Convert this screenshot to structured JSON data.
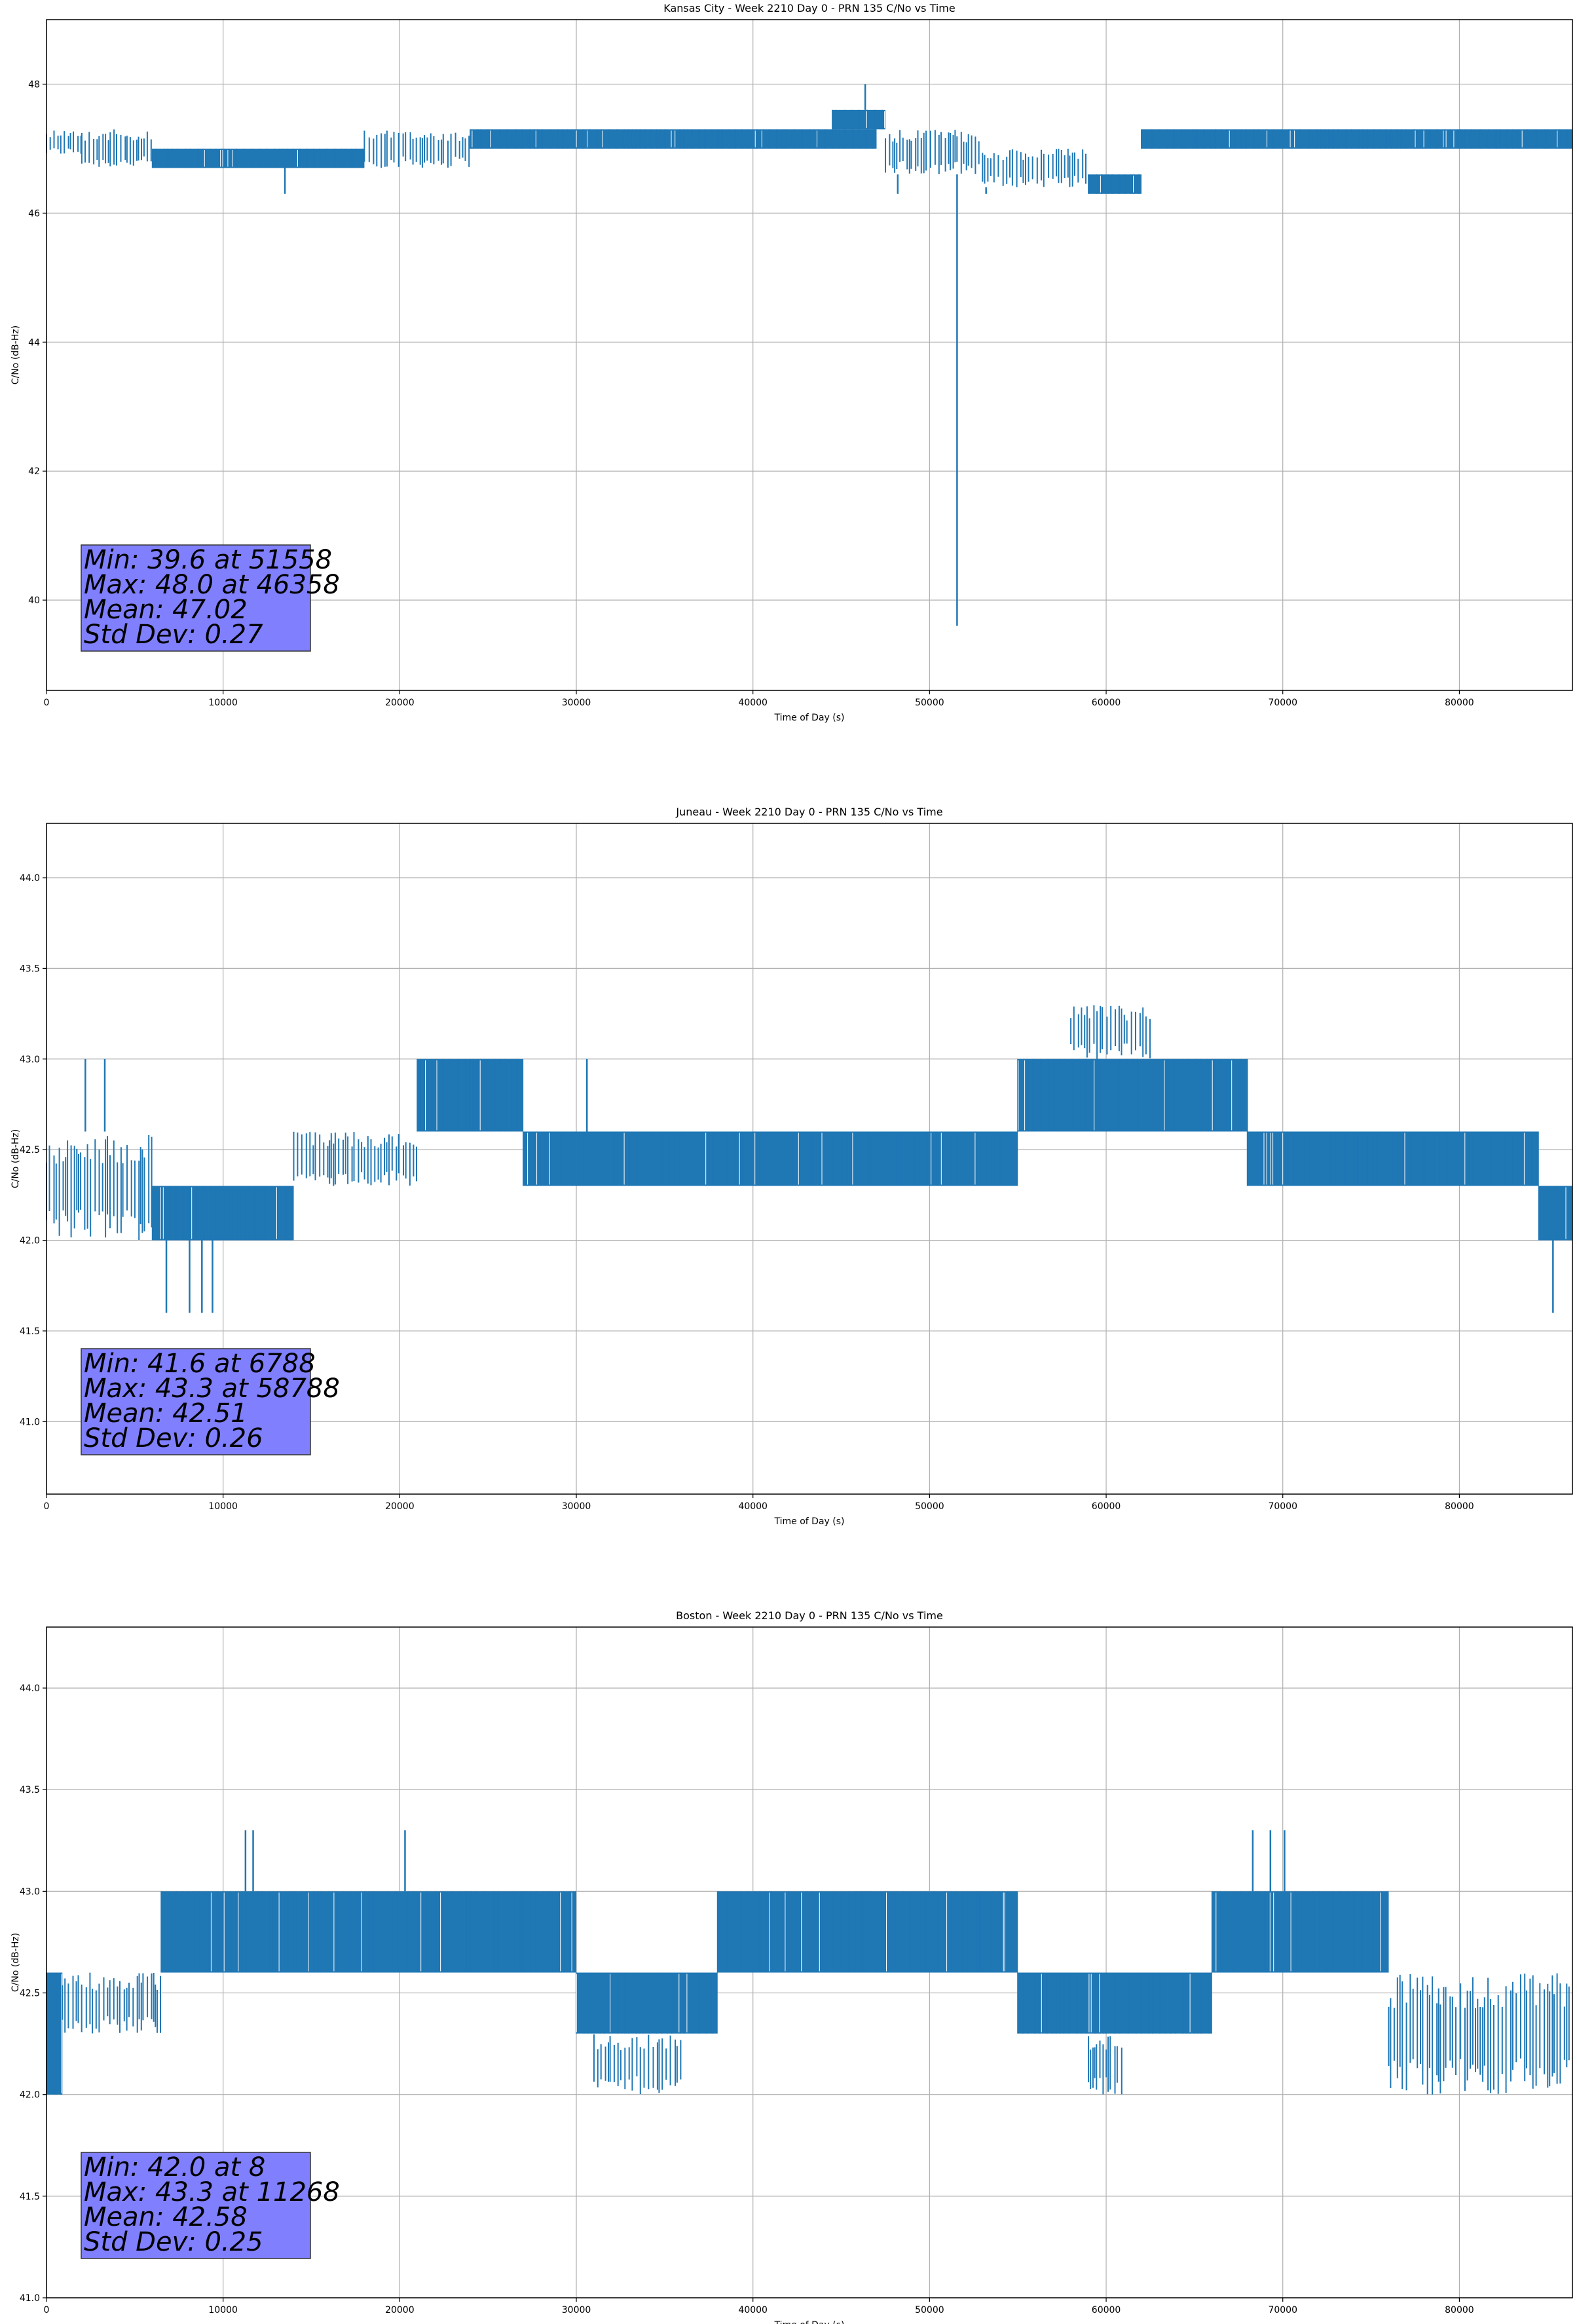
{
  "figure": {
    "background": "#ffffff",
    "series_color": "#1f77b4",
    "stats_box_color": "#8080ff"
  },
  "chart_data": [
    {
      "type": "line",
      "title": "Kansas City - Week 2210 Day 0 - PRN 135 C/No vs Time",
      "xlabel": "Time of Day (s)",
      "ylabel": "C/No (dB-Hz)",
      "xlim": [
        0,
        86400
      ],
      "ylim": [
        38.6,
        49.0
      ],
      "xticks": [
        0,
        10000,
        20000,
        30000,
        40000,
        50000,
        60000,
        70000,
        80000
      ],
      "yticks": [
        40,
        42,
        44,
        46,
        48
      ],
      "ytick_labels": [
        "40",
        "42",
        "44",
        "46",
        "48"
      ],
      "grid": true,
      "stats": [
        "Min: 39.6 at 51558",
        "Max: 48.0 at 46358",
        "Mean: 47.02",
        "Std Dev: 0.27"
      ],
      "series": [
        {
          "name": "C/No",
          "segments": [
            {
              "x": [
                0,
                2000
              ],
              "lo": 46.9,
              "hi": 47.3,
              "sparse": true
            },
            {
              "x": [
                2000,
                6000
              ],
              "lo": 46.7,
              "hi": 47.3,
              "sparse": true
            },
            {
              "x": [
                6000,
                18000
              ],
              "lo": 46.7,
              "hi": 47.0,
              "sparse": false
            },
            {
              "x": [
                18000,
                24000
              ],
              "lo": 46.7,
              "hi": 47.3,
              "sparse": true
            },
            {
              "x": [
                24000,
                47000
              ],
              "lo": 47.0,
              "hi": 47.3,
              "sparse": false
            },
            {
              "x": [
                44500,
                47500
              ],
              "lo": 47.3,
              "hi": 47.6,
              "sparse": false
            },
            {
              "x": [
                47500,
                53000
              ],
              "lo": 46.6,
              "hi": 47.3,
              "sparse": true
            },
            {
              "x": [
                53000,
                59000
              ],
              "lo": 46.4,
              "hi": 47.0,
              "sparse": true
            },
            {
              "x": [
                59000,
                62000
              ],
              "lo": 46.3,
              "hi": 46.6,
              "sparse": false
            },
            {
              "x": [
                62000,
                86400
              ],
              "lo": 47.0,
              "hi": 47.3,
              "sparse": false
            }
          ],
          "spikes": [
            {
              "x": 46358,
              "y": 48.0
            },
            {
              "x": 51558,
              "y": 39.6
            },
            {
              "x": 13500,
              "y": 46.3
            },
            {
              "x": 48200,
              "y": 46.3
            },
            {
              "x": 53200,
              "y": 46.3
            }
          ]
        }
      ]
    },
    {
      "type": "line",
      "title": "Juneau - Week 2210 Day 0 - PRN 135 C/No vs Time",
      "xlabel": "Time of Day (s)",
      "ylabel": "C/No (dB-Hz)",
      "xlim": [
        0,
        86400
      ],
      "ylim": [
        40.6,
        44.3
      ],
      "xticks": [
        0,
        10000,
        20000,
        30000,
        40000,
        50000,
        60000,
        70000,
        80000
      ],
      "yticks": [
        41.0,
        41.5,
        42.0,
        42.5,
        43.0,
        43.5,
        44.0
      ],
      "ytick_labels": [
        "41.0",
        "41.5",
        "42.0",
        "42.5",
        "43.0",
        "43.5",
        "44.0"
      ],
      "grid": true,
      "stats": [
        "Min: 41.6 at 6788",
        "Max: 43.3 at 58788",
        "Mean: 42.51",
        "Std Dev: 0.26"
      ],
      "series": [
        {
          "name": "C/No",
          "segments": [
            {
              "x": [
                0,
                6000
              ],
              "lo": 42.0,
              "hi": 42.6,
              "sparse": true
            },
            {
              "x": [
                6000,
                14000
              ],
              "lo": 42.0,
              "hi": 42.3,
              "sparse": false
            },
            {
              "x": [
                14000,
                21000
              ],
              "lo": 42.3,
              "hi": 42.6,
              "sparse": true
            },
            {
              "x": [
                21000,
                27000
              ],
              "lo": 42.6,
              "hi": 43.0,
              "sparse": false
            },
            {
              "x": [
                27000,
                55000
              ],
              "lo": 42.3,
              "hi": 42.6,
              "sparse": false
            },
            {
              "x": [
                55000,
                68000
              ],
              "lo": 42.6,
              "hi": 43.0,
              "sparse": false
            },
            {
              "x": [
                58000,
                62500
              ],
              "lo": 43.0,
              "hi": 43.3,
              "sparse": true
            },
            {
              "x": [
                68000,
                84500
              ],
              "lo": 42.3,
              "hi": 42.6,
              "sparse": false
            },
            {
              "x": [
                84500,
                86400
              ],
              "lo": 42.0,
              "hi": 42.3,
              "sparse": false
            }
          ],
          "spikes": [
            {
              "x": 6788,
              "y": 41.6
            },
            {
              "x": 8100,
              "y": 41.6
            },
            {
              "x": 8800,
              "y": 41.6
            },
            {
              "x": 9400,
              "y": 41.6
            },
            {
              "x": 85300,
              "y": 41.6
            },
            {
              "x": 2200,
              "y": 43.0
            },
            {
              "x": 3300,
              "y": 43.0
            },
            {
              "x": 30600,
              "y": 43.0
            }
          ]
        }
      ]
    },
    {
      "type": "line",
      "title": "Boston - Week 2210 Day 0 - PRN 135 C/No vs Time",
      "xlabel": "Time of Day (s)",
      "ylabel": "C/No (dB-Hz)",
      "xlim": [
        0,
        86400
      ],
      "ylim": [
        41.0,
        44.3
      ],
      "xticks": [
        0,
        10000,
        20000,
        30000,
        40000,
        50000,
        60000,
        70000,
        80000
      ],
      "yticks": [
        41.0,
        41.5,
        42.0,
        42.5,
        43.0,
        43.5,
        44.0
      ],
      "ytick_labels": [
        "41.0",
        "41.5",
        "42.0",
        "42.5",
        "43.0",
        "43.5",
        "44.0"
      ],
      "grid": true,
      "stats": [
        "Min: 42.0 at 8",
        "Max: 43.3 at 11268",
        "Mean: 42.58",
        "Std Dev: 0.25"
      ],
      "series": [
        {
          "name": "C/No",
          "segments": [
            {
              "x": [
                0,
                900
              ],
              "lo": 42.0,
              "hi": 42.6,
              "sparse": false
            },
            {
              "x": [
                900,
                6500
              ],
              "lo": 42.3,
              "hi": 42.6,
              "sparse": true
            },
            {
              "x": [
                6500,
                30000
              ],
              "lo": 42.6,
              "hi": 43.0,
              "sparse": false
            },
            {
              "x": [
                30000,
                38000
              ],
              "lo": 42.3,
              "hi": 42.6,
              "sparse": false
            },
            {
              "x": [
                31000,
                36000
              ],
              "lo": 42.0,
              "hi": 42.3,
              "sparse": true
            },
            {
              "x": [
                38000,
                55000
              ],
              "lo": 42.6,
              "hi": 43.0,
              "sparse": false
            },
            {
              "x": [
                55000,
                66000
              ],
              "lo": 42.3,
              "hi": 42.6,
              "sparse": false
            },
            {
              "x": [
                59000,
                61000
              ],
              "lo": 42.0,
              "hi": 42.3,
              "sparse": true
            },
            {
              "x": [
                66000,
                76000
              ],
              "lo": 42.6,
              "hi": 43.0,
              "sparse": false
            },
            {
              "x": [
                76000,
                86400
              ],
              "lo": 42.0,
              "hi": 42.6,
              "sparse": true
            }
          ],
          "spikes": [
            {
              "x": 11268,
              "y": 43.3
            },
            {
              "x": 11700,
              "y": 43.3
            },
            {
              "x": 20300,
              "y": 43.3
            },
            {
              "x": 68300,
              "y": 43.3
            },
            {
              "x": 69300,
              "y": 43.3
            },
            {
              "x": 70100,
              "y": 43.3
            }
          ]
        }
      ]
    }
  ]
}
